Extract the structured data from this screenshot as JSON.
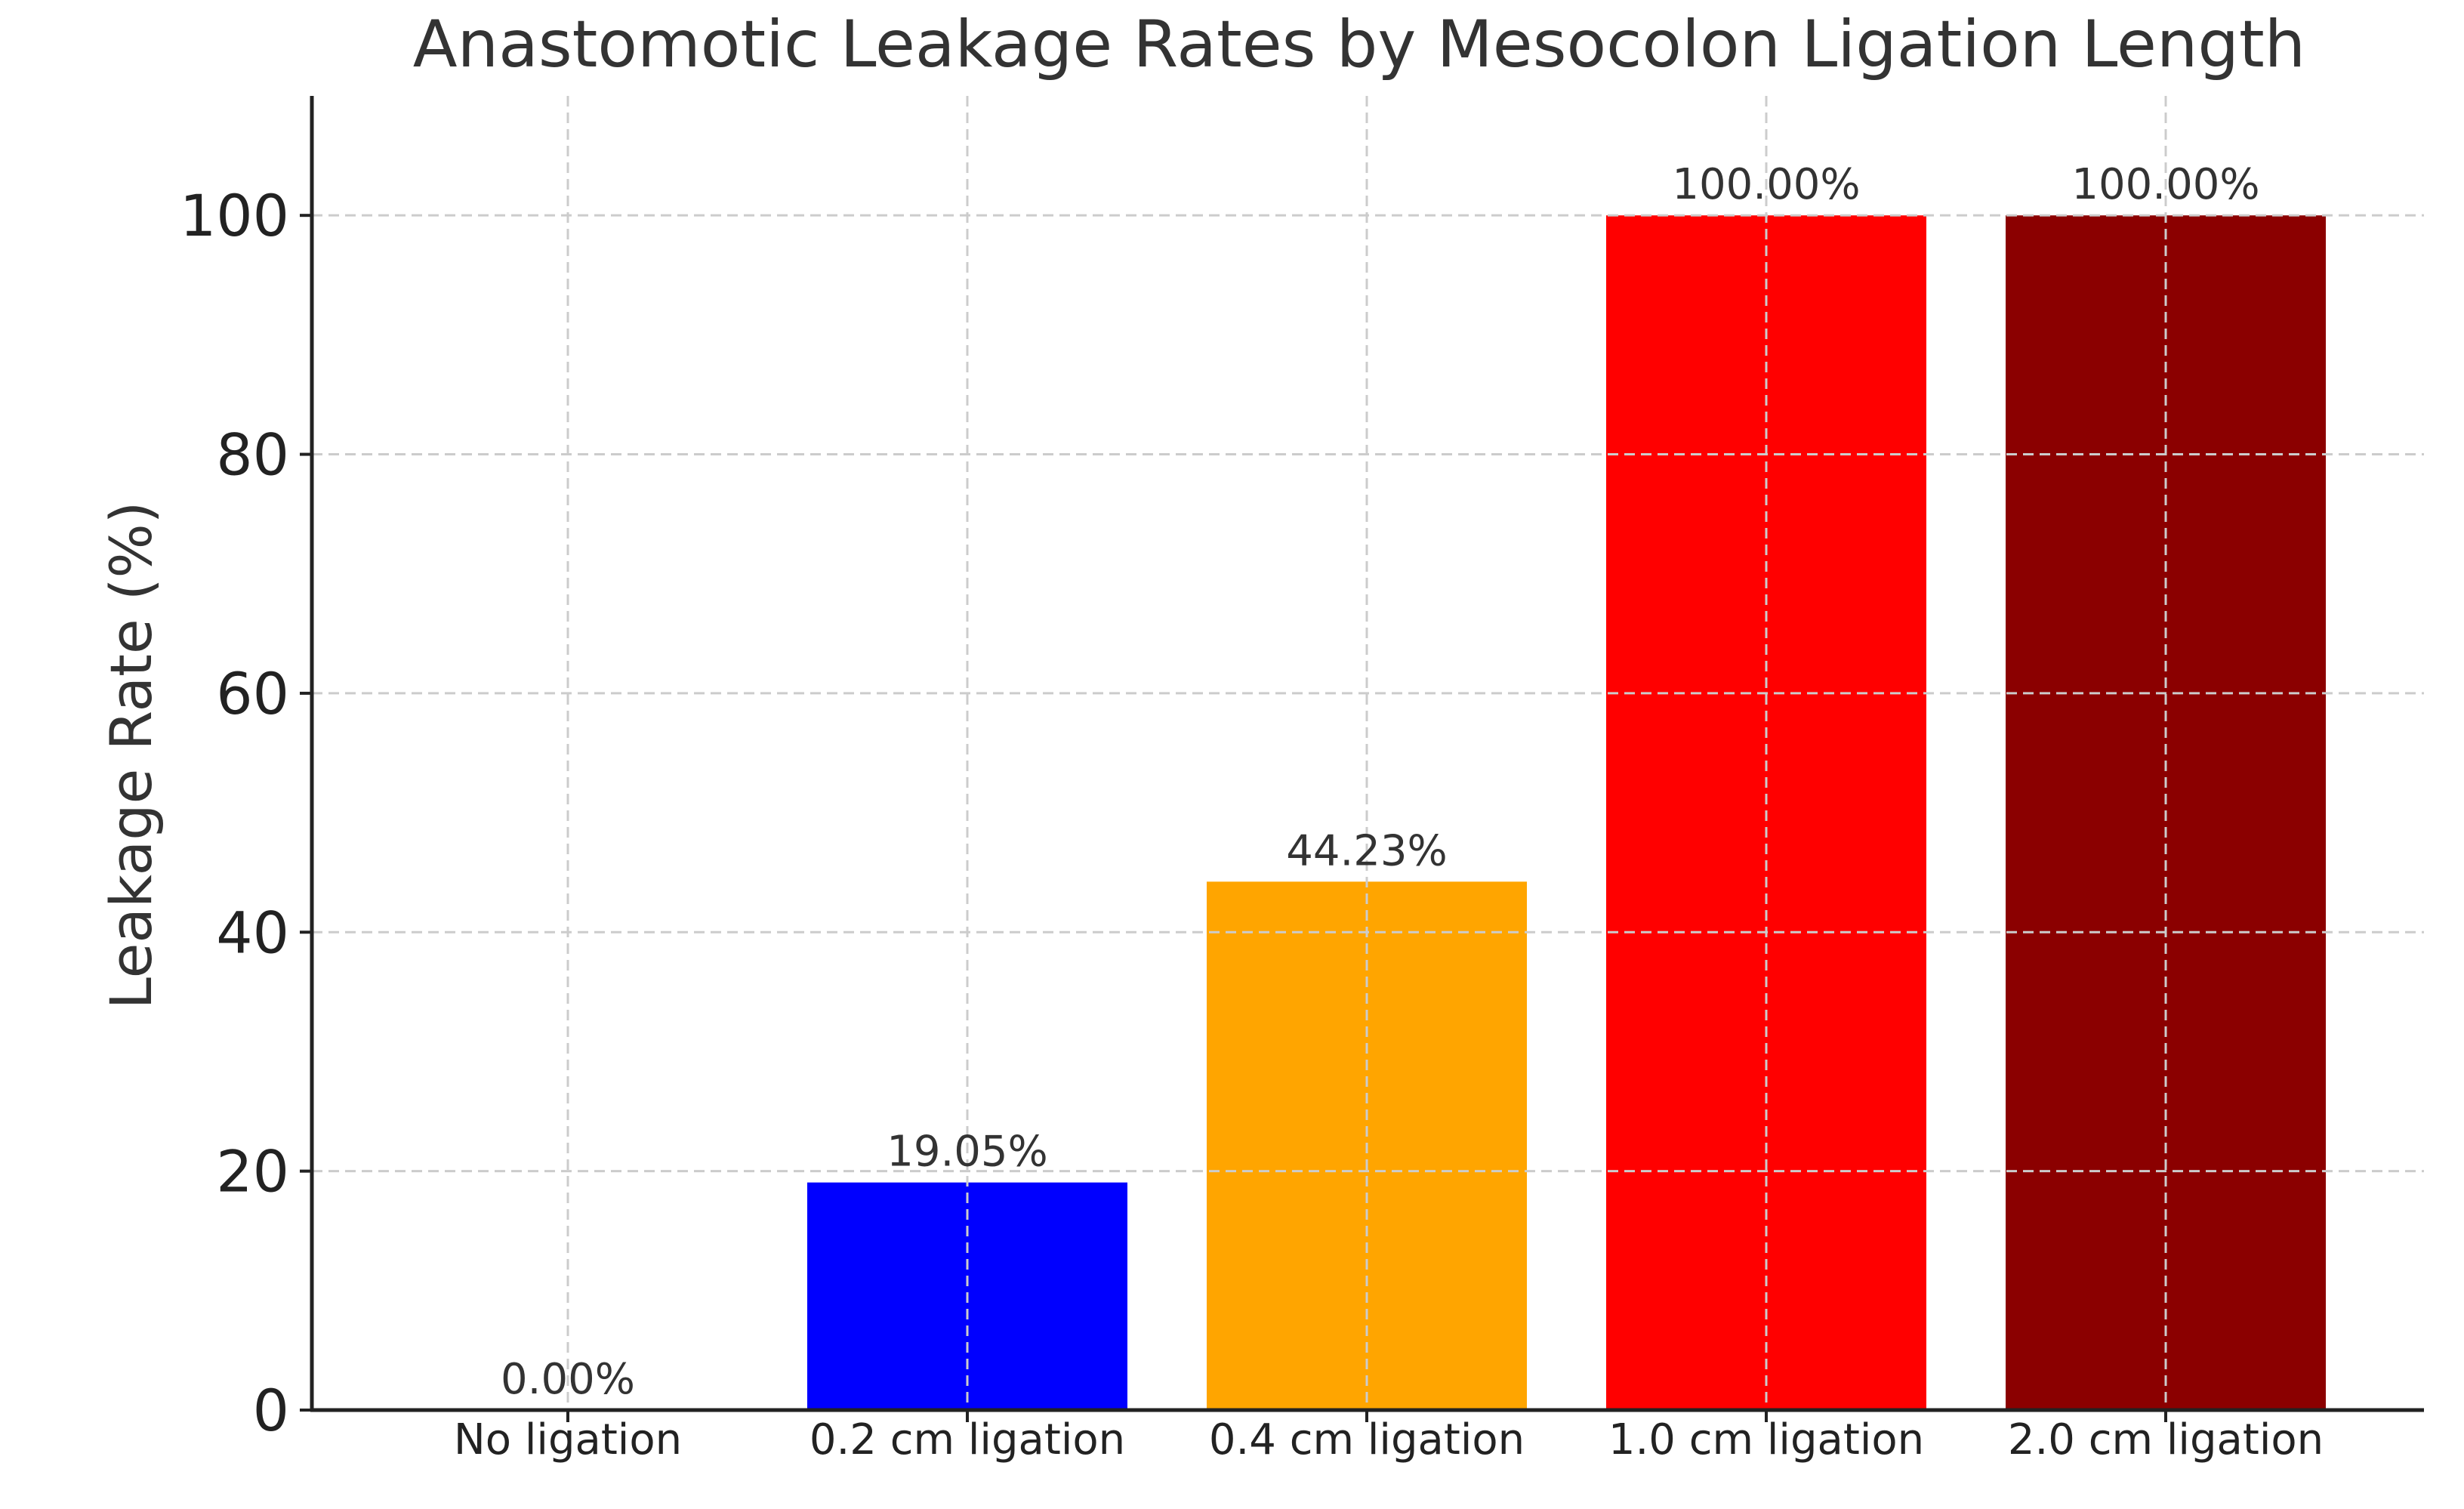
{
  "chart_data": {
    "type": "bar",
    "title": "Anastomotic Leakage Rates by Mesocolon Ligation Length",
    "xlabel": "",
    "ylabel": "Leakage Rate (%)",
    "categories": [
      "No ligation",
      "0.2 cm ligation",
      "0.4 cm ligation",
      "1.0 cm ligation",
      "2.0 cm ligation"
    ],
    "values": [
      0.0,
      19.05,
      44.23,
      100.0,
      100.0
    ],
    "data_labels": [
      "0.00%",
      "19.05%",
      "44.23%",
      "100.00%",
      "100.00%"
    ],
    "colors": [
      "#0000ff",
      "#0000ff",
      "#ffa500",
      "#ff0000",
      "#8b0000"
    ],
    "ylim": [
      0,
      110
    ],
    "yticks": [
      0,
      20,
      40,
      60,
      80,
      100
    ],
    "grid": true,
    "legend": "none"
  }
}
